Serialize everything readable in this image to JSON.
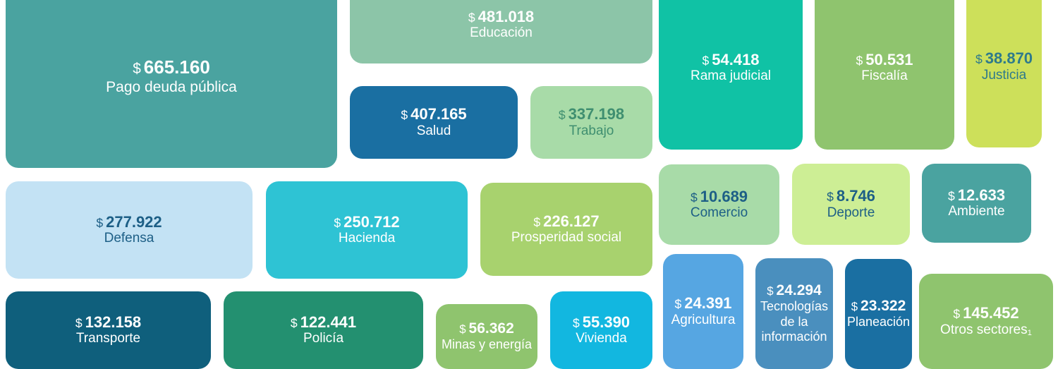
{
  "chart_data": {
    "type": "treemap",
    "currency_symbol": "$",
    "items": [
      {
        "label": "Pago deuda pública",
        "value_text": "665.160",
        "value": 665160,
        "color": "#4aa3a0",
        "text_color": "#ffffff"
      },
      {
        "label": "Educación",
        "value_text": "481.018",
        "value": 481018,
        "color": "#8cc5a8",
        "text_color": "#ffffff"
      },
      {
        "label": "Salud",
        "value_text": "407.165",
        "value": 407165,
        "color": "#1a6fa2",
        "text_color": "#ffffff"
      },
      {
        "label": "Trabajo",
        "value_text": "337.198",
        "value": 337198,
        "color": "#a8dba8",
        "text_color": "#3f8f70"
      },
      {
        "label": "Rama judicial",
        "value_text": "54.418",
        "value": 54418,
        "color": "#10c2a5",
        "text_color": "#ffffff"
      },
      {
        "label": "Fiscalía",
        "value_text": "50.531",
        "value": 50531,
        "color": "#8fc46e",
        "text_color": "#ffffff"
      },
      {
        "label": "Justicia",
        "value_text": "38.870",
        "value": 38870,
        "color": "#cde05a",
        "text_color": "#2e7a8c"
      },
      {
        "label": "Defensa",
        "value_text": "277.922",
        "value": 277922,
        "color": "#c3e2f4",
        "text_color": "#1d5f86"
      },
      {
        "label": "Hacienda",
        "value_text": "250.712",
        "value": 250712,
        "color": "#2ec3d4",
        "text_color": "#ffffff"
      },
      {
        "label": "Prosperidad social",
        "value_text": "226.127",
        "value": 226127,
        "color": "#a8d26e",
        "text_color": "#ffffff"
      },
      {
        "label": "Comercio",
        "value_text": "10.689",
        "value": 10689,
        "color": "#a8dba8",
        "text_color": "#1d5f86"
      },
      {
        "label": "Deporte",
        "value_text": "8.746",
        "value": 8746,
        "color": "#cdee95",
        "text_color": "#1d5f86"
      },
      {
        "label": "Ambiente",
        "value_text": "12.633",
        "value": 12633,
        "color": "#4aa3a0",
        "text_color": "#ffffff"
      },
      {
        "label": "Transporte",
        "value_text": "132.158",
        "value": 132158,
        "color": "#0f5f7c",
        "text_color": "#ffffff"
      },
      {
        "label": "Policía",
        "value_text": "122.441",
        "value": 122441,
        "color": "#239070",
        "text_color": "#ffffff"
      },
      {
        "label": "Minas y energía",
        "value_text": "56.362",
        "value": 56362,
        "color": "#8fc46e",
        "text_color": "#ffffff"
      },
      {
        "label": "Vivienda",
        "value_text": "55.390",
        "value": 55390,
        "color": "#12b7e0",
        "text_color": "#ffffff"
      },
      {
        "label": "Agricultura",
        "value_text": "24.391",
        "value": 24391,
        "color": "#56a6e2",
        "text_color": "#ffffff"
      },
      {
        "label": "Tecnologías de la información",
        "value_text": "24.294",
        "value": 24294,
        "color": "#4a8fbe",
        "text_color": "#ffffff"
      },
      {
        "label": "Planeación",
        "value_text": "23.322",
        "value": 23322,
        "color": "#1a6fa2",
        "text_color": "#ffffff"
      },
      {
        "label": "Otros sectores",
        "footnote": "1",
        "value_text": "145.452",
        "value": 145452,
        "color": "#8fc46e",
        "text_color": "#ffffff"
      }
    ]
  }
}
